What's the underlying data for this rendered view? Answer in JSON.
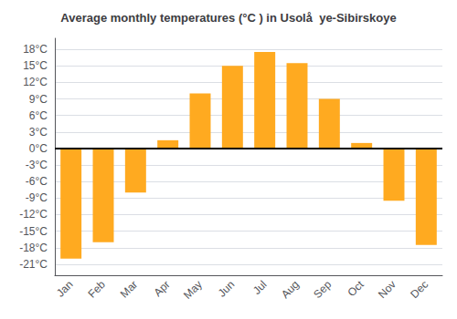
{
  "chart_data": {
    "type": "bar",
    "title": "Average monthly temperatures (°C ) in Usolå  ye-Sibirskoye",
    "categories": [
      "Jan",
      "Feb",
      "Mar",
      "Apr",
      "May",
      "Jun",
      "Jul",
      "Aug",
      "Sep",
      "Oct",
      "Nov",
      "Dec"
    ],
    "values": [
      -20,
      -17,
      -8,
      1.5,
      10,
      15,
      17.5,
      15.5,
      9,
      1,
      -9.5,
      -17.5
    ],
    "color": "#FFAA20",
    "ylim": [
      -23,
      20
    ],
    "yticks": [
      {
        "value": -21,
        "label": "-21°C"
      },
      {
        "value": -18,
        "label": "-18°C"
      },
      {
        "value": -15,
        "label": "-15°C"
      },
      {
        "value": -12,
        "label": "-12°C"
      },
      {
        "value": -9,
        "label": "-9°C"
      },
      {
        "value": -6,
        "label": "-6°C"
      },
      {
        "value": -3,
        "label": "-3°C"
      },
      {
        "value": 0,
        "label": "0°C"
      },
      {
        "value": 3,
        "label": "3°C"
      },
      {
        "value": 6,
        "label": "6°C"
      },
      {
        "value": 9,
        "label": "9°C"
      },
      {
        "value": 12,
        "label": "12°C"
      },
      {
        "value": 15,
        "label": "15°C"
      },
      {
        "value": 18,
        "label": "18°C"
      }
    ],
    "grid": true
  }
}
